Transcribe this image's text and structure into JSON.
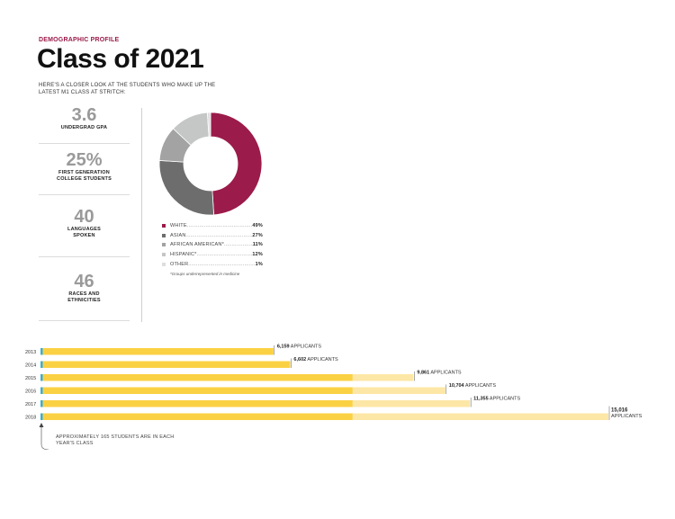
{
  "header": {
    "kicker": "DEMOGRAPHIC PROFILE",
    "title": "Class of 2021",
    "intro": "HERE'S A CLOSER LOOK AT THE STUDENTS WHO MAKE UP THE LATEST M1 CLASS AT STRITCH:"
  },
  "stats": [
    {
      "value": "3.6",
      "label": "UNDERGRAD GPA"
    },
    {
      "value": "25%",
      "label": "FIRST GENERATION\nCOLLEGE STUDENTS"
    },
    {
      "value": "40",
      "label": "LANGUAGES\nSPOKEN"
    },
    {
      "value": "46",
      "label": "RACES AND\nETHNICITIES"
    }
  ],
  "footnote": "*Groups underrepresented in medicine",
  "bar_note": "APPROXIMATELY 165 STUDENTS ARE IN EACH YEAR'S CLASS",
  "colors": {
    "maroon": "#9b1b4a",
    "bar_yellow": "#fbd144",
    "bar_pale": "#fde7a6",
    "class_marker": "#3aaed8"
  },
  "chart_data": [
    {
      "type": "pie",
      "variant": "donut",
      "categories": [
        "WHITE",
        "ASIAN",
        "AFRICAN AMERICAN*",
        "HISPANIC*",
        "OTHER"
      ],
      "values": [
        49,
        27,
        11,
        12,
        1
      ],
      "value_labels": [
        "49%",
        "27%",
        "11%",
        "12%",
        "1%"
      ],
      "colors": [
        "#9b1b4a",
        "#6d6d6d",
        "#a3a3a3",
        "#c5c7c7",
        "#dedede"
      ],
      "legend_position": "below"
    },
    {
      "type": "bar",
      "orientation": "horizontal",
      "categories": [
        "2013",
        "2014",
        "2015",
        "2016",
        "2017",
        "2018"
      ],
      "values": [
        6159,
        6602,
        9861,
        10704,
        11355,
        15016
      ],
      "value_labels": [
        "6,159",
        "6,602",
        "9,861",
        "10,704",
        "11,355",
        "15,016"
      ],
      "value_suffix": "APPLICANTS",
      "class_size": 165,
      "xlim": [
        0,
        15016
      ]
    }
  ]
}
